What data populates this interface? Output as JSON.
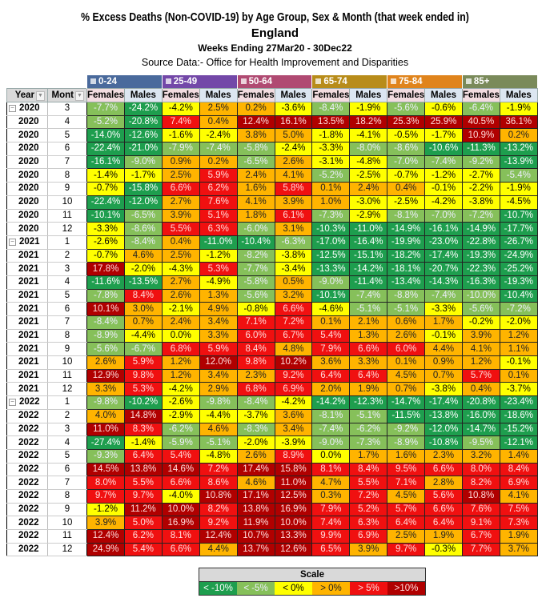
{
  "title": "% Excess Deaths (Non-COVID-19) by Age Group, Sex & Month (that week ended in)",
  "subtitle": "England",
  "weeks": "Weeks Ending 27Mar20 - 30Dec22",
  "source": "Source Data:- Office for Health Improvement and Disparities",
  "headers": {
    "year": "Year",
    "month": "Mont",
    "female": "Females",
    "male": "Males"
  },
  "age_groups": [
    {
      "label": "0-24",
      "color": "#4a6a9c"
    },
    {
      "label": "25-49",
      "color": "#7348a8"
    },
    {
      "label": "50-64",
      "color": "#b04a72"
    },
    {
      "label": "65-74",
      "color": "#b88c1a"
    },
    {
      "label": "75-84",
      "color": "#e0841c"
    },
    {
      "label": "85+",
      "color": "#7a8a5a"
    }
  ],
  "rows": [
    [
      "2020",
      3,
      [
        -7.7,
        -24.2,
        -4.2,
        2.5,
        0.2,
        -3.6,
        -8.4,
        -1.9,
        -5.6,
        -0.6,
        -6.4,
        -1.9
      ]
    ],
    [
      "2020",
      4,
      [
        -5.2,
        -20.8,
        7.4,
        0.4,
        12.4,
        16.1,
        13.5,
        18.2,
        25.3,
        25.9,
        40.5,
        36.1
      ]
    ],
    [
      "2020",
      5,
      [
        -14.0,
        -12.6,
        -1.6,
        -2.4,
        3.8,
        5.0,
        -1.8,
        -4.1,
        -0.5,
        -1.7,
        10.9,
        0.2
      ]
    ],
    [
      "2020",
      6,
      [
        -22.4,
        -21.0,
        -7.9,
        -7.4,
        -5.8,
        -2.4,
        -3.3,
        -8.0,
        -8.6,
        -10.6,
        -11.3,
        -13.2
      ]
    ],
    [
      "2020",
      7,
      [
        -16.1,
        -9.0,
        0.9,
        0.2,
        -6.5,
        2.6,
        -3.1,
        -4.8,
        -7.0,
        -7.4,
        -9.2,
        -13.9
      ]
    ],
    [
      "2020",
      8,
      [
        -1.4,
        -1.7,
        2.5,
        5.9,
        2.4,
        4.1,
        -5.2,
        -2.5,
        -0.7,
        -1.2,
        -2.7,
        -5.4
      ]
    ],
    [
      "2020",
      9,
      [
        -0.7,
        -15.8,
        6.6,
        6.2,
        1.6,
        5.8,
        0.1,
        2.4,
        0.4,
        -0.1,
        -2.2,
        -1.9
      ]
    ],
    [
      "2020",
      10,
      [
        -22.4,
        -12.0,
        2.7,
        7.6,
        4.1,
        3.9,
        1.0,
        -3.0,
        -2.5,
        -4.2,
        -3.8,
        -4.5
      ]
    ],
    [
      "2020",
      11,
      [
        -10.1,
        -6.5,
        3.9,
        5.1,
        1.8,
        6.1,
        -7.3,
        -2.9,
        -8.1,
        -7.0,
        -7.2,
        -10.7
      ]
    ],
    [
      "2020",
      12,
      [
        -3.3,
        -8.6,
        5.5,
        6.3,
        -6.0,
        3.1,
        -10.3,
        -11.0,
        -14.9,
        -16.1,
        -14.9,
        -17.7
      ]
    ],
    [
      "2021",
      1,
      [
        -2.6,
        -8.4,
        0.4,
        -11.0,
        -10.4,
        -6.3,
        -17.0,
        -16.4,
        -19.9,
        -23.0,
        -22.8,
        -26.7
      ]
    ],
    [
      "2021",
      2,
      [
        -0.7,
        4.6,
        2.5,
        -1.2,
        -8.2,
        -3.8,
        -12.5,
        -15.1,
        -18.2,
        -17.4,
        -19.3,
        -24.9
      ]
    ],
    [
      "2021",
      3,
      [
        17.8,
        -2.0,
        -4.3,
        5.3,
        -7.7,
        -3.4,
        -13.3,
        -14.2,
        -18.1,
        -20.7,
        -22.3,
        -25.2
      ]
    ],
    [
      "2021",
      4,
      [
        -11.6,
        -13.5,
        2.7,
        -4.9,
        -5.8,
        0.5,
        -9.0,
        -11.4,
        -13.4,
        -14.3,
        -16.3,
        -19.3
      ]
    ],
    [
      "2021",
      5,
      [
        -7.8,
        8.4,
        2.6,
        1.3,
        -5.6,
        3.2,
        -10.1,
        -7.4,
        -8.8,
        -7.4,
        -10.0,
        -10.4
      ]
    ],
    [
      "2021",
      6,
      [
        10.1,
        3.0,
        -2.1,
        4.9,
        -0.8,
        6.6,
        -4.6,
        -5.1,
        -5.1,
        -3.3,
        -5.6,
        -7.2
      ]
    ],
    [
      "2021",
      7,
      [
        -8.4,
        0.7,
        2.4,
        3.4,
        7.1,
        7.2,
        0.1,
        2.1,
        0.6,
        1.7,
        -0.2,
        -2.0
      ]
    ],
    [
      "2021",
      8,
      [
        -8.9,
        -4.4,
        0.0,
        3.3,
        6.0,
        6.7,
        5.4,
        1.3,
        2.6,
        -0.1,
        3.9,
        1.2
      ]
    ],
    [
      "2021",
      9,
      [
        -5.6,
        -6.7,
        6.8,
        5.9,
        8.4,
        4.8,
        7.9,
        6.6,
        6.0,
        4.4,
        4.1,
        1.1
      ]
    ],
    [
      "2021",
      10,
      [
        2.6,
        5.9,
        1.2,
        12.0,
        9.8,
        10.2,
        3.6,
        3.3,
        0.1,
        0.9,
        1.2,
        -0.1
      ]
    ],
    [
      "2021",
      11,
      [
        12.9,
        9.8,
        1.2,
        3.4,
        2.3,
        9.2,
        6.4,
        6.4,
        4.5,
        0.7,
        5.7,
        0.1
      ]
    ],
    [
      "2021",
      12,
      [
        3.3,
        5.3,
        -4.2,
        2.9,
        6.8,
        6.9,
        2.0,
        1.9,
        0.7,
        -3.8,
        0.4,
        -3.7
      ]
    ],
    [
      "2022",
      1,
      [
        -9.8,
        -10.2,
        -2.6,
        -9.8,
        -8.4,
        -4.2,
        -14.2,
        -12.3,
        -14.7,
        -17.4,
        -20.8,
        -23.4
      ]
    ],
    [
      "2022",
      2,
      [
        4.0,
        14.8,
        -2.9,
        -4.4,
        -3.7,
        3.6,
        -8.1,
        -5.1,
        -11.5,
        -13.8,
        -16.0,
        -18.6
      ]
    ],
    [
      "2022",
      3,
      [
        11.0,
        8.3,
        -6.2,
        4.6,
        -8.3,
        3.4,
        -7.4,
        -6.2,
        -9.2,
        -12.0,
        -14.7,
        -15.2
      ]
    ],
    [
      "2022",
      4,
      [
        -27.4,
        -1.4,
        -5.9,
        -5.1,
        -2.0,
        -3.9,
        -9.0,
        -7.3,
        -8.9,
        -10.8,
        -9.5,
        -12.1
      ]
    ],
    [
      "2022",
      5,
      [
        -9.3,
        6.4,
        5.4,
        -4.8,
        2.6,
        8.9,
        0.0,
        1.7,
        1.6,
        2.3,
        3.2,
        1.4
      ]
    ],
    [
      "2022",
      6,
      [
        14.5,
        13.8,
        14.6,
        7.2,
        17.4,
        15.8,
        8.1,
        8.4,
        9.5,
        6.6,
        8.0,
        8.4
      ]
    ],
    [
      "2022",
      7,
      [
        8.0,
        5.5,
        6.6,
        8.6,
        4.6,
        11.0,
        4.7,
        5.5,
        7.1,
        2.8,
        8.2,
        6.9
      ]
    ],
    [
      "2022",
      8,
      [
        9.7,
        9.7,
        -4.0,
        10.8,
        17.1,
        12.5,
        0.3,
        7.2,
        4.5,
        5.6,
        10.8,
        4.1
      ]
    ],
    [
      "2022",
      9,
      [
        -1.2,
        11.2,
        10.0,
        8.2,
        13.8,
        16.9,
        7.9,
        5.2,
        5.7,
        6.6,
        7.6,
        7.5
      ]
    ],
    [
      "2022",
      10,
      [
        3.9,
        5.0,
        16.9,
        9.2,
        11.9,
        10.0,
        7.4,
        6.3,
        6.4,
        6.4,
        9.1,
        7.3
      ]
    ],
    [
      "2022",
      11,
      [
        12.4,
        6.2,
        8.1,
        12.4,
        10.7,
        13.3,
        9.9,
        6.9,
        2.5,
        1.9,
        6.7,
        1.9
      ]
    ],
    [
      "2022",
      12,
      [
        24.9,
        5.4,
        6.6,
        4.4,
        13.7,
        12.6,
        6.5,
        3.9,
        9.7,
        -0.3,
        7.7,
        3.7
      ]
    ]
  ],
  "color_overrides": [
    {
      "year": "2020",
      "month": 5,
      "col": 5,
      "band": "o"
    }
  ],
  "scale": {
    "title": "Scale",
    "bands": [
      {
        "label": "< -10%",
        "cls": "dg"
      },
      {
        "label": "< -5%",
        "cls": "lg"
      },
      {
        "label": "< 0%",
        "cls": "y"
      },
      {
        "label": "> 0%",
        "cls": "o"
      },
      {
        "label": "> 5%",
        "cls": "r"
      },
      {
        "label": ">10%",
        "cls": "dr"
      }
    ]
  }
}
